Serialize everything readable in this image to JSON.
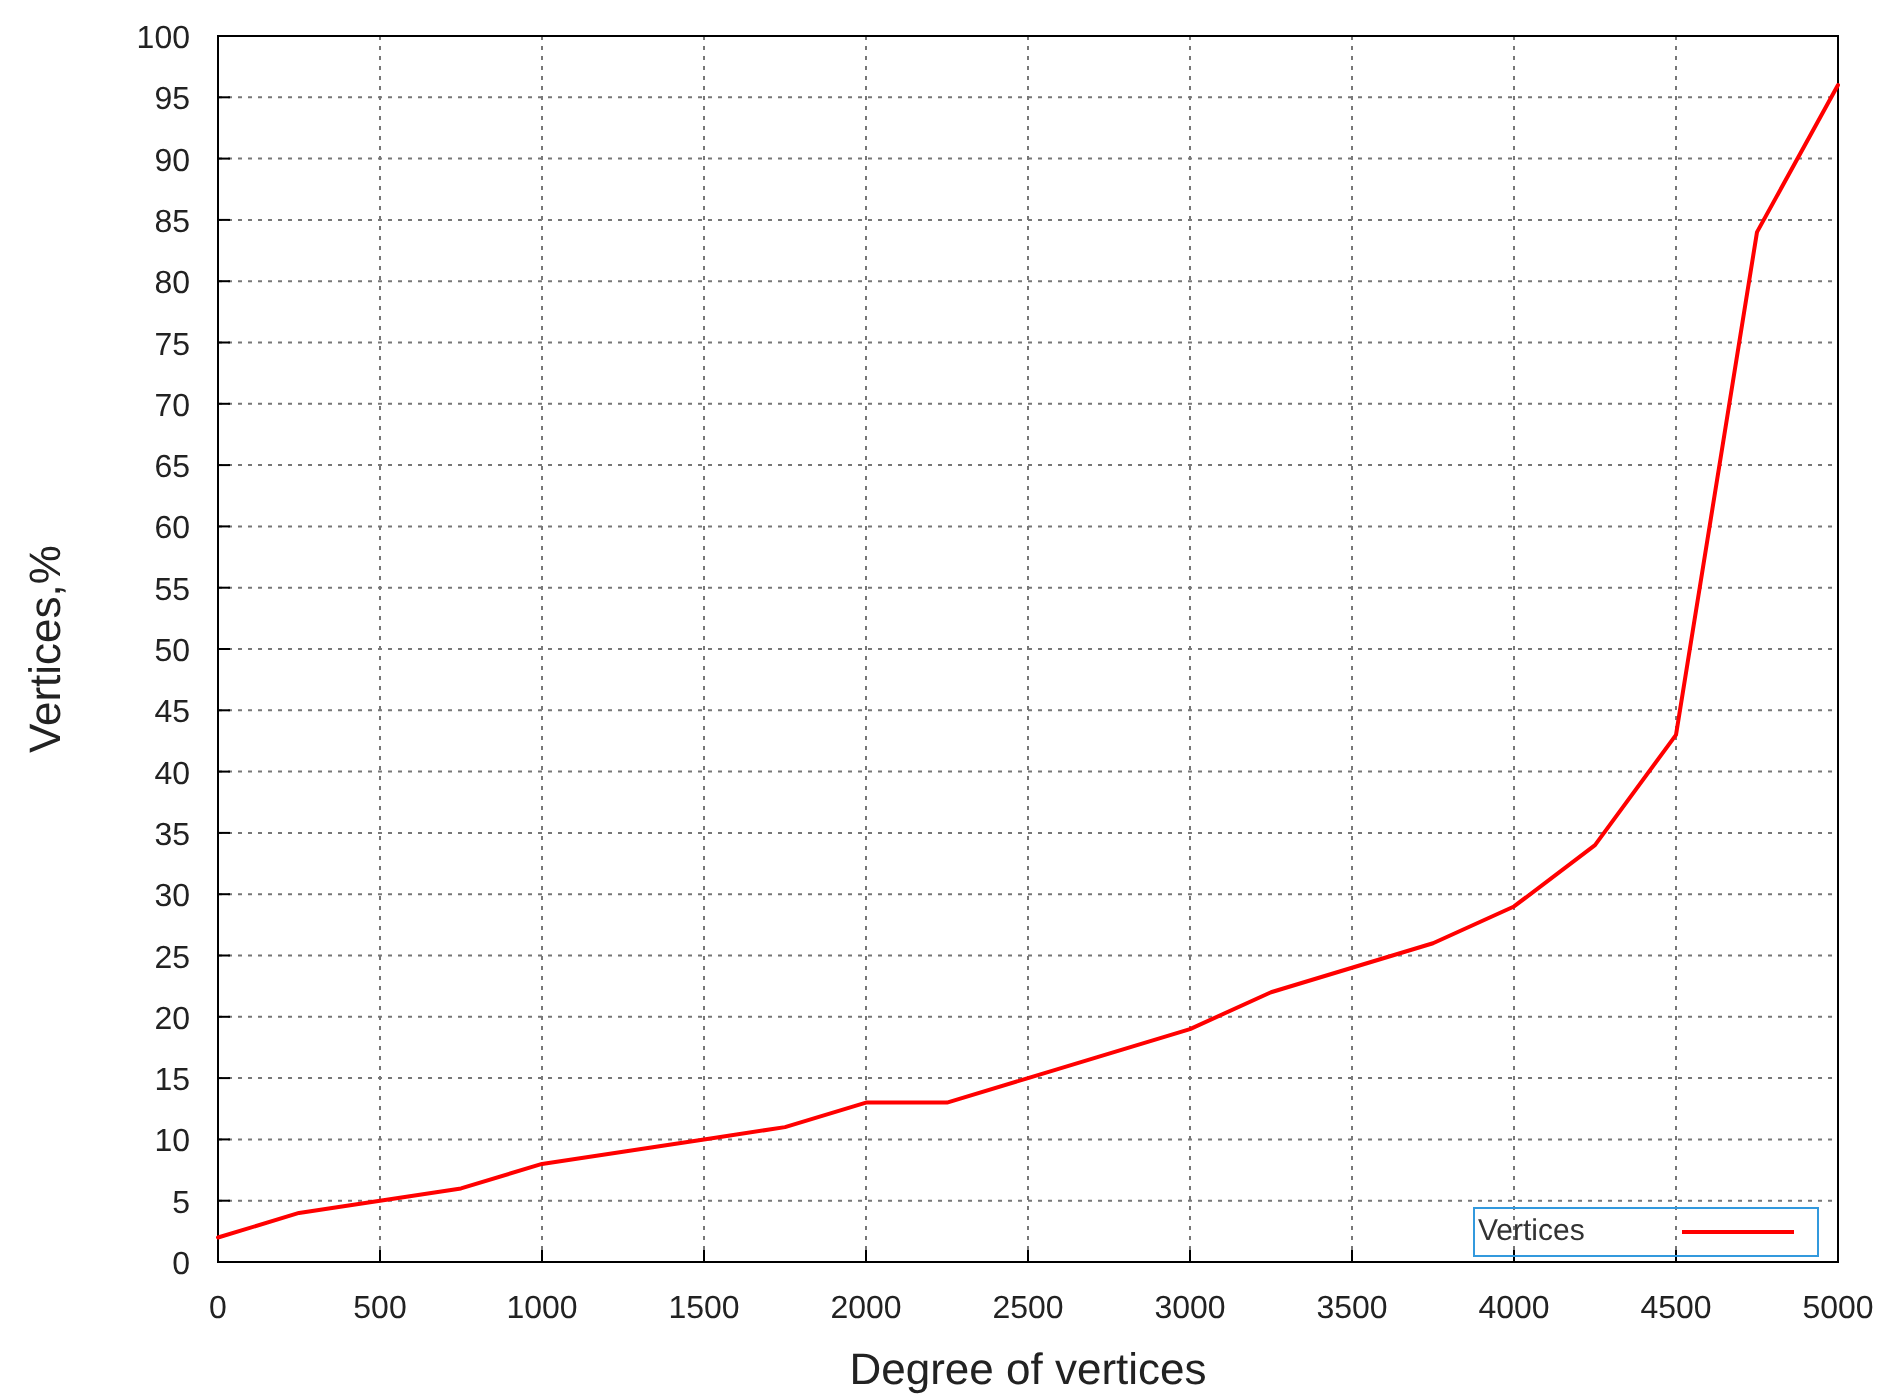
{
  "chart_data": {
    "type": "line",
    "xlabel": "Degree of vertices",
    "ylabel": "Vertices,%",
    "x": [
      0,
      250,
      500,
      750,
      1000,
      1250,
      1500,
      1750,
      2000,
      2250,
      2500,
      2750,
      3000,
      3250,
      3500,
      3750,
      4000,
      4250,
      4500,
      4750,
      5000
    ],
    "series": [
      {
        "name": "Vertices",
        "color": "#ff0000",
        "values": [
          2,
          4,
          5,
          6,
          8,
          9,
          10,
          11,
          13,
          13,
          15,
          17,
          19,
          22,
          24,
          26,
          29,
          34,
          43,
          84,
          96
        ]
      }
    ],
    "xlim": [
      0,
      5000
    ],
    "xticks": [
      0,
      500,
      1000,
      1500,
      2000,
      2500,
      3000,
      3500,
      4000,
      4500,
      5000
    ],
    "ylim": [
      0,
      100
    ],
    "yticks": [
      0,
      5,
      10,
      15,
      20,
      25,
      30,
      35,
      40,
      45,
      50,
      55,
      60,
      65,
      70,
      75,
      80,
      85,
      90,
      95,
      100
    ],
    "grid": true,
    "legend": "bottom right",
    "line_style": "solid",
    "marker": "none"
  }
}
